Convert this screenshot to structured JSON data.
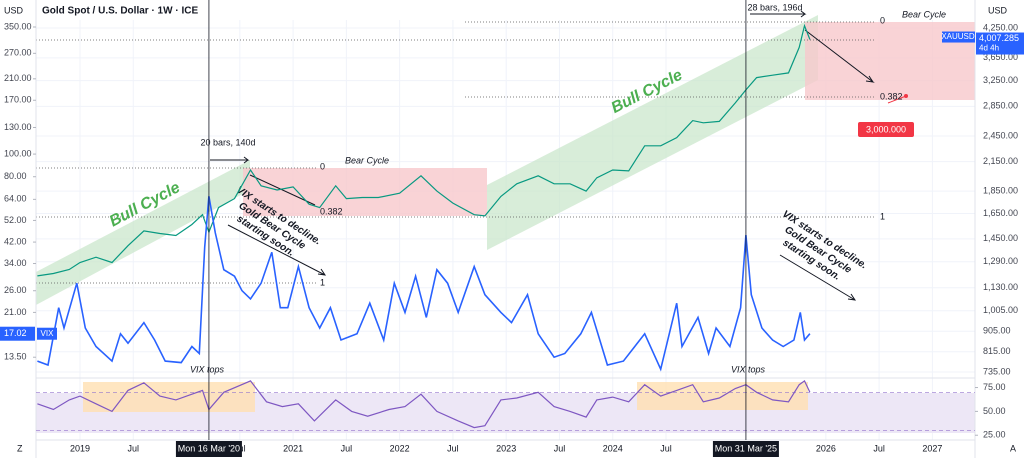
{
  "header": {
    "currency_left": "USD",
    "title": "Gold Spot / U.S. Dollar · 1W · ICE",
    "currency_right": "USD",
    "corner_left": "Z",
    "corner_right": "A"
  },
  "chart_data": [
    {
      "type": "line",
      "log": true,
      "grid": true,
      "xlim": [
        2018.587,
        2027.4
      ],
      "xticks": [
        {
          "value": 2019,
          "label": "2019"
        },
        {
          "value": 2019.5,
          "label": "Jul"
        },
        {
          "value": 2020.5,
          "label": "Jul"
        },
        {
          "value": 2021,
          "label": "2021"
        },
        {
          "value": 2021.5,
          "label": "Jul"
        },
        {
          "value": 2022,
          "label": "2022"
        },
        {
          "value": 2022.5,
          "label": "Jul"
        },
        {
          "value": 2023,
          "label": "2023"
        },
        {
          "value": 2023.5,
          "label": "Jul"
        },
        {
          "value": 2024,
          "label": "2024"
        },
        {
          "value": 2024.5,
          "label": "Jul"
        },
        {
          "value": 2026,
          "label": "2026"
        },
        {
          "value": 2026.5,
          "label": "Jul"
        },
        {
          "value": 2027,
          "label": "2027"
        }
      ],
      "markers": [
        {
          "x": 2020.21,
          "label": "Mon 16 Mar '20"
        },
        {
          "x": 2025.25,
          "label": "Mon 31 Mar '25"
        }
      ],
      "ylim": [
        713,
        4427
      ],
      "yticks": [
        {
          "value": 4250,
          "label": "4,250.00"
        },
        {
          "value": 3650,
          "label": "3,650.00"
        },
        {
          "value": 3250,
          "label": "3,250.00"
        },
        {
          "value": 2850,
          "label": "2,850.00"
        },
        {
          "value": 2450,
          "label": "2,450.00"
        },
        {
          "value": 2150,
          "label": "2,150.00"
        },
        {
          "value": 1850,
          "label": "1,850.00"
        },
        {
          "value": 1650,
          "label": "1,650.00"
        },
        {
          "value": 1450,
          "label": "1,450.00"
        },
        {
          "value": 1290,
          "label": "1,290.00"
        },
        {
          "value": 1130,
          "label": "1,130.00"
        },
        {
          "value": 1005,
          "label": "1,005.00"
        },
        {
          "value": 905,
          "label": "905.00"
        },
        {
          "value": 815,
          "label": "815.00"
        },
        {
          "value": 735,
          "label": "735.00"
        }
      ],
      "x": [
        2018.6,
        2018.75,
        2018.9,
        2019.0,
        2019.15,
        2019.3,
        2019.45,
        2019.6,
        2019.75,
        2019.9,
        2020.05,
        2020.15,
        2020.21,
        2020.3,
        2020.45,
        2020.6,
        2020.7,
        2020.85,
        2021.0,
        2021.15,
        2021.25,
        2021.4,
        2021.5,
        2021.65,
        2021.8,
        2022.0,
        2022.2,
        2022.35,
        2022.5,
        2022.7,
        2022.8,
        2022.95,
        2023.1,
        2023.3,
        2023.45,
        2023.6,
        2023.75,
        2023.85,
        2024.0,
        2024.15,
        2024.3,
        2024.45,
        2024.6,
        2024.75,
        2024.85,
        2025.0,
        2025.15,
        2025.25,
        2025.35,
        2025.5,
        2025.65,
        2025.75,
        2025.8,
        2025.85
      ],
      "series": [
        {
          "name": "XAUUSD",
          "color": "#089981",
          "last_value_label": "4,007.285",
          "countdown": "4d 4h",
          "values": [
            1200,
            1215,
            1240,
            1285,
            1320,
            1285,
            1400,
            1510,
            1490,
            1475,
            1560,
            1640,
            1500,
            1700,
            1780,
            2060,
            1900,
            1860,
            1890,
            1730,
            1700,
            1900,
            1780,
            1790,
            1790,
            1830,
            2000,
            1850,
            1740,
            1640,
            1630,
            1800,
            1920,
            2000,
            1920,
            1920,
            1850,
            1980,
            2060,
            2050,
            2330,
            2330,
            2430,
            2650,
            2620,
            2640,
            2900,
            3100,
            3300,
            3340,
            3380,
            3850,
            4300,
            4007.285
          ]
        }
      ]
    },
    {
      "type": "line",
      "log": true,
      "ylim": [
        11,
        375
      ],
      "yticks": [
        {
          "value": 350,
          "label": "350.00"
        },
        {
          "value": 270,
          "label": "270.00"
        },
        {
          "value": 210,
          "label": "210.00"
        },
        {
          "value": 170,
          "label": "170.00"
        },
        {
          "value": 130,
          "label": "130.00"
        },
        {
          "value": 100,
          "label": "100.00"
        },
        {
          "value": 80,
          "label": "80.00"
        },
        {
          "value": 64,
          "label": "64.00"
        },
        {
          "value": 52,
          "label": "52.00"
        },
        {
          "value": 42,
          "label": "42.00"
        },
        {
          "value": 34,
          "label": "34.00"
        },
        {
          "value": 26,
          "label": "26.00"
        },
        {
          "value": 21,
          "label": "21.00"
        },
        {
          "value": 13.5,
          "label": "13.50"
        }
      ],
      "x": [
        2018.6,
        2018.7,
        2018.8,
        2018.85,
        2018.97,
        2019.05,
        2019.15,
        2019.3,
        2019.38,
        2019.45,
        2019.6,
        2019.7,
        2019.8,
        2019.95,
        2020.05,
        2020.12,
        2020.17,
        2020.21,
        2020.27,
        2020.35,
        2020.45,
        2020.52,
        2020.6,
        2020.7,
        2020.8,
        2020.88,
        2020.95,
        2021.05,
        2021.15,
        2021.25,
        2021.35,
        2021.45,
        2021.6,
        2021.72,
        2021.85,
        2021.95,
        2022.05,
        2022.15,
        2022.25,
        2022.35,
        2022.45,
        2022.55,
        2022.7,
        2022.8,
        2022.95,
        2023.05,
        2023.2,
        2023.3,
        2023.45,
        2023.55,
        2023.7,
        2023.8,
        2023.95,
        2024.1,
        2024.3,
        2024.45,
        2024.6,
        2024.65,
        2024.8,
        2024.9,
        2024.97,
        2025.1,
        2025.2,
        2025.25,
        2025.3,
        2025.4,
        2025.5,
        2025.6,
        2025.7,
        2025.76,
        2025.8,
        2025.85
      ],
      "series": [
        {
          "name": "VIX",
          "color": "#2962ff",
          "values": [
            13,
            12.5,
            22,
            18,
            28,
            18,
            15,
            13,
            17,
            15.5,
            19,
            16,
            13,
            12.8,
            15,
            14,
            40,
            66,
            46,
            32,
            30,
            26,
            24,
            28,
            38,
            22,
            22,
            33,
            22,
            18,
            22,
            16,
            17,
            23,
            16,
            28,
            21,
            30,
            20,
            32,
            28,
            21,
            33,
            25,
            21,
            19,
            25,
            17,
            13.5,
            14,
            17,
            21,
            12.5,
            13,
            17,
            12,
            23,
            15,
            20,
            14,
            18,
            15,
            22,
            45,
            25,
            18,
            16,
            15,
            16,
            21,
            16,
            17.02
          ]
        }
      ]
    },
    {
      "type": "line",
      "ylim": [
        20,
        85
      ],
      "yticks": [
        {
          "value": 75,
          "label": "75.00"
        },
        {
          "value": 50,
          "label": "50.00"
        },
        {
          "value": 25,
          "label": "25.00"
        }
      ],
      "x": [
        2018.6,
        2018.75,
        2018.9,
        2019.0,
        2019.15,
        2019.3,
        2019.45,
        2019.6,
        2019.75,
        2019.9,
        2020.05,
        2020.15,
        2020.21,
        2020.35,
        2020.6,
        2020.75,
        2020.9,
        2021.05,
        2021.2,
        2021.4,
        2021.55,
        2021.7,
        2021.9,
        2022.05,
        2022.2,
        2022.35,
        2022.55,
        2022.7,
        2022.8,
        2022.95,
        2023.1,
        2023.3,
        2023.45,
        2023.6,
        2023.75,
        2023.85,
        2024.0,
        2024.15,
        2024.3,
        2024.45,
        2024.6,
        2024.75,
        2024.85,
        2025.0,
        2025.15,
        2025.25,
        2025.35,
        2025.5,
        2025.65,
        2025.75,
        2025.8,
        2025.85
      ],
      "band": [
        30,
        70
      ],
      "series": [
        {
          "color": "#7e57c2",
          "values": [
            58,
            52,
            62,
            66,
            58,
            50,
            72,
            80,
            66,
            62,
            68,
            72,
            52,
            70,
            82,
            60,
            55,
            58,
            40,
            62,
            50,
            45,
            52,
            55,
            68,
            50,
            40,
            33,
            35,
            62,
            64,
            70,
            55,
            50,
            44,
            62,
            65,
            60,
            78,
            66,
            72,
            78,
            60,
            64,
            74,
            78,
            70,
            62,
            60,
            78,
            82,
            70
          ]
        }
      ]
    }
  ],
  "annotations": {
    "bull_cycle_1": "Bull Cycle",
    "bull_cycle_2": "Bull Cycle",
    "bear_cycle_1": "Bear Cycle",
    "bear_cycle_2": "Bear Cycle",
    "bars_1": "20 bars, 140d",
    "bars_2": "28 bars, 196d",
    "vix_note_1": [
      "VIX starts to decline.",
      "Gold Bear Cycle",
      "starting soon."
    ],
    "vix_note_2": [
      "VIX starts to decline.",
      "Gold Bear Cycle",
      "starting soon."
    ],
    "vix_tops_1": "VIX tops",
    "vix_tops_2": "VIX tops",
    "fib_1": [
      "0",
      "0.382",
      "1"
    ],
    "fib_2": [
      "0",
      "0.382",
      "1"
    ],
    "target": "3,000.000"
  }
}
